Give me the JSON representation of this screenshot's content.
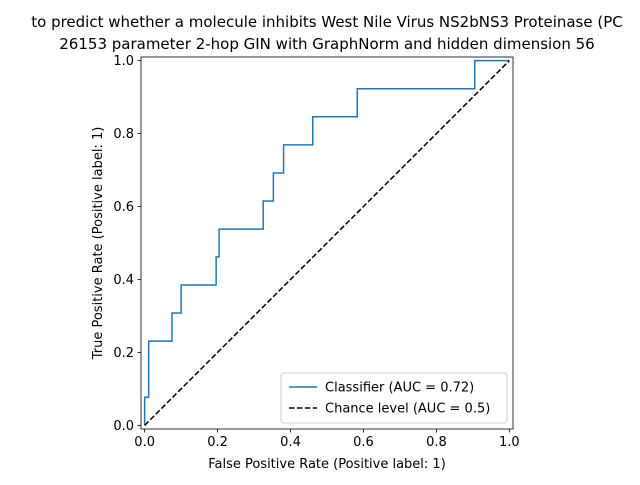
{
  "chart_data": {
    "type": "line",
    "title": [
      "to predict whether a molecule inhibits West Nile Virus NS2bNS3 Proteinase (PC",
      "26153 parameter 2-hop GIN with GraphNorm and hidden dimension 56"
    ],
    "xlabel": "False Positive Rate (Positive label: 1)",
    "ylabel": "True Positive Rate (Positive label: 1)",
    "xlim": [
      -0.01,
      1.01
    ],
    "ylim": [
      -0.01,
      1.01
    ],
    "xticks": [
      "0.0",
      "0.2",
      "0.4",
      "0.6",
      "0.8",
      "1.0"
    ],
    "yticks": [
      "0.0",
      "0.2",
      "0.4",
      "0.6",
      "0.8",
      "1.0"
    ],
    "grid": false,
    "legend_position": "lower-right",
    "series": [
      {
        "name": "Classifier (AUC = 0.72)",
        "color": "#1f77b4",
        "style": "solid",
        "x": [
          0.0,
          0.0,
          0.0,
          0.011,
          0.011,
          0.075,
          0.075,
          0.1,
          0.1,
          0.196,
          0.196,
          0.204,
          0.204,
          0.325,
          0.325,
          0.353,
          0.353,
          0.381,
          0.381,
          0.461,
          0.461,
          0.583,
          0.583,
          0.905,
          0.905,
          1.0
        ],
        "y": [
          0.0,
          0.077,
          0.077,
          0.077,
          0.231,
          0.231,
          0.308,
          0.308,
          0.385,
          0.385,
          0.462,
          0.462,
          0.538,
          0.538,
          0.615,
          0.615,
          0.692,
          0.692,
          0.769,
          0.769,
          0.846,
          0.846,
          0.923,
          0.923,
          1.0,
          1.0
        ]
      },
      {
        "name": "Chance level (AUC = 0.5)",
        "color": "#000000",
        "style": "dashed",
        "x": [
          0.0,
          1.0
        ],
        "y": [
          0.0,
          1.0
        ]
      }
    ]
  }
}
